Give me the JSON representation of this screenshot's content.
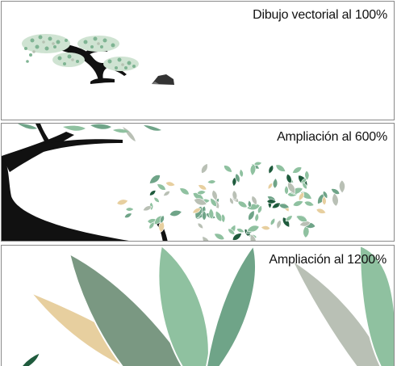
{
  "panels": [
    {
      "caption": "Dibujo vectorial al 100%"
    },
    {
      "caption": "Ampliación al 600%"
    },
    {
      "caption": "Ampliación al 1200%"
    }
  ],
  "colors": {
    "trunk": "#111111",
    "leaf_light": "#8fc1a0",
    "leaf_mid": "#6fa488",
    "leaf_dark": "#1f5b3d",
    "leaf_gray": "#b9c0b5",
    "leaf_tan": "#e7cf9f",
    "border": "#8a8a8a",
    "rock": "#333333"
  }
}
